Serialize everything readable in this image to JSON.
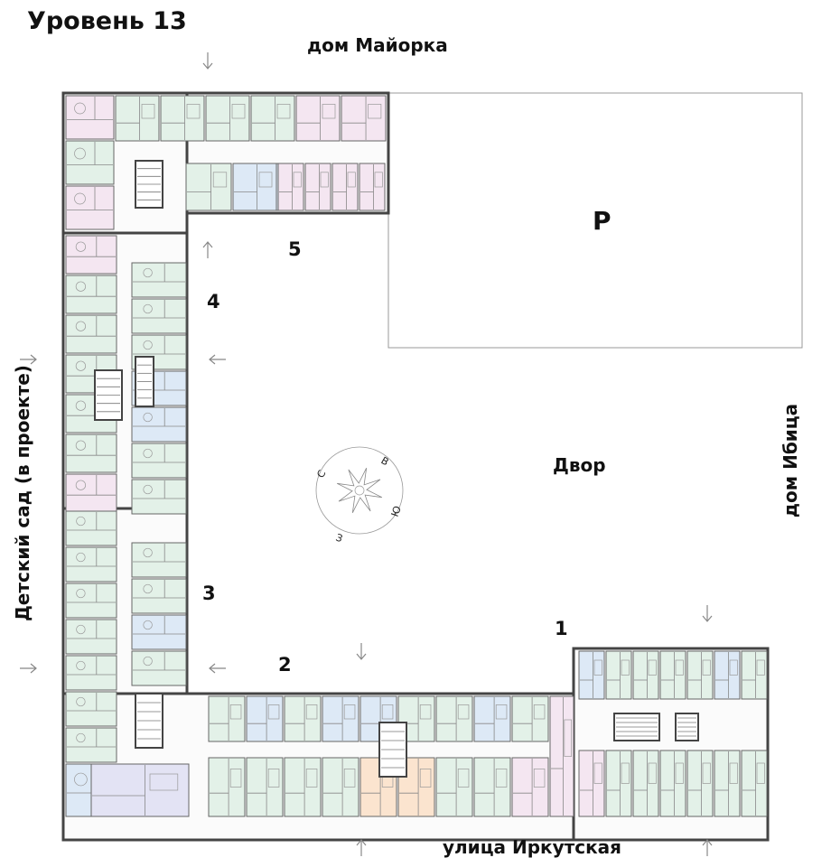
{
  "title": "Уровень 13",
  "neighbors": {
    "north": "дом Майорка",
    "east": "дом Ибица",
    "west": "Детский сад (в проекте)",
    "south": "улица Иркутская"
  },
  "courtyard": "Двор",
  "parking": "P",
  "sections": [
    "1",
    "2",
    "3",
    "4",
    "5"
  ],
  "compass": {
    "n": "С",
    "e": "В",
    "s": "Ю",
    "w": "З"
  },
  "unit_colors": {
    "green": "#e3f1e8",
    "pink": "#f4e6f1",
    "blue": "#dde9f6",
    "orange": "#fbe4cf",
    "violet": "#e3e3f4"
  },
  "wall_color": "#444444"
}
